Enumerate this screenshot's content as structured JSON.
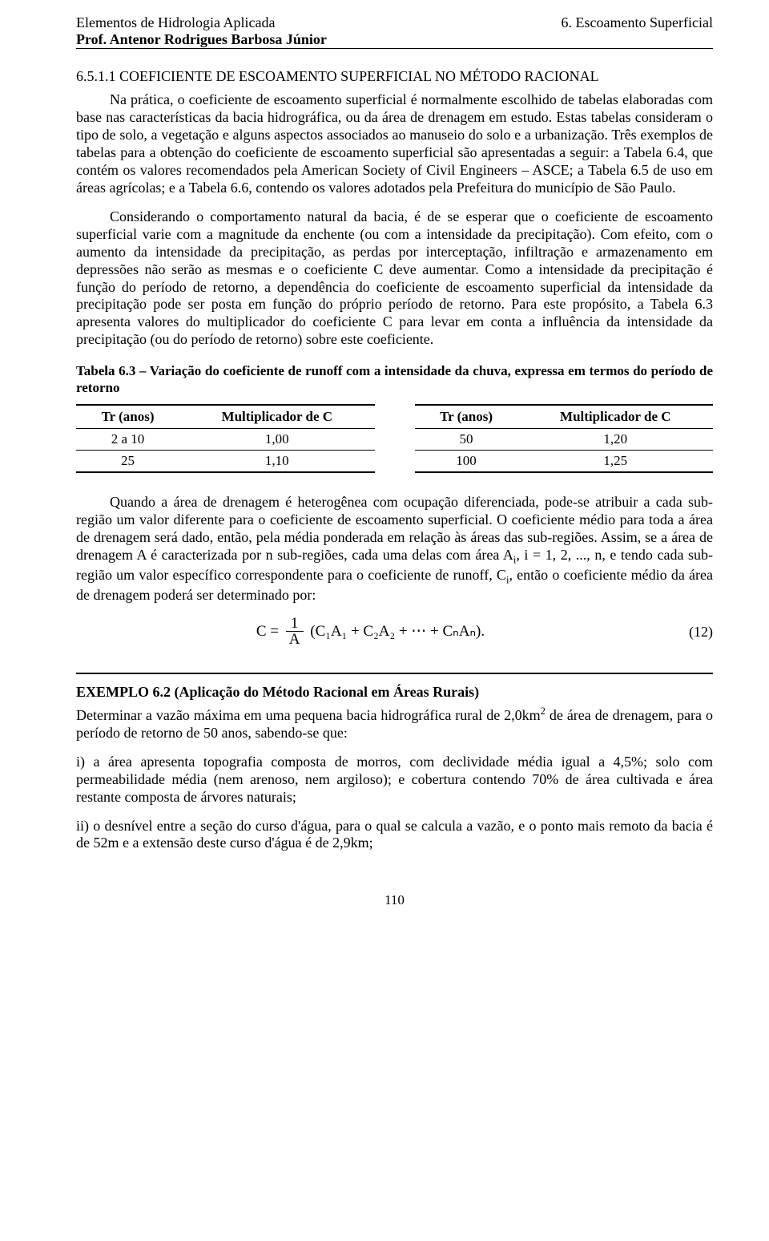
{
  "header": {
    "left_line1": "Elementos de Hidrologia Aplicada",
    "left_line2": "Prof. Antenor Rodrigues Barbosa Júnior",
    "right_line1": "6. Escoamento Superficial"
  },
  "section": {
    "title": "6.5.1.1 COEFICIENTE DE ESCOAMENTO SUPERFICIAL NO MÉTODO RACIONAL"
  },
  "paragraphs": {
    "p1": "Na prática, o coeficiente de escoamento superficial é normalmente escolhido de tabelas elaboradas com base nas características da bacia hidrográfica, ou da área de drenagem em estudo. Estas tabelas consideram o tipo de solo, a vegetação e alguns aspectos associados ao manuseio do solo e a urbanização. Três exemplos de tabelas para a obtenção do coeficiente de escoamento superficial são apresentadas a seguir: a Tabela 6.4, que contém os valores recomendados pela American Society of Civil Engineers – ASCE; a Tabela 6.5 de uso em áreas agrícolas; e a Tabela 6.6, contendo os valores adotados pela Prefeitura do município de São Paulo.",
    "p2": "Considerando o comportamento natural da bacia, é de se esperar que o coeficiente de escoamento superficial varie com a magnitude da enchente (ou com a intensidade da precipitação). Com efeito, com o aumento da intensidade da precipitação, as perdas por interceptação, infiltração e armazenamento em depressões não serão as mesmas e o coeficiente C deve aumentar. Como a intensidade da precipitação é função do período de retorno, a dependência do coeficiente de escoamento superficial da intensidade da precipitação pode ser posta em função do próprio período de retorno. Para este propósito, a Tabela 6.3 apresenta valores do multiplicador do coeficiente C para levar em conta a influência da intensidade da precipitação (ou do período de retorno) sobre este coeficiente.",
    "p3a": "Quando a área de drenagem é heterogênea com ocupação diferenciada, pode-se atribuir a cada sub-região um valor diferente para o coeficiente de escoamento superficial. O coeficiente médio para toda a área de drenagem será dado, então, pela média ponderada em relação às áreas das sub-regiões. Assim, se a área de drenagem A é caracterizada por n sub-regiões, cada uma delas com área A",
    "p3b": ", i = 1, 2, ..., n, e tendo cada sub-região um valor específico correspondente para o coeficiente de runoff, C",
    "p3c": ", então o coeficiente médio da área de drenagem poderá ser determinado por:",
    "sub_i": "i"
  },
  "table63": {
    "caption": "Tabela 6.3 – Variação do coeficiente de runoff com a intensidade da chuva, expressa em termos do período de retorno",
    "col1": "Tr (anos)",
    "col2": "Multiplicador de C",
    "left": {
      "rows": [
        [
          "2 a 10",
          "1,00"
        ],
        [
          "25",
          "1,10"
        ]
      ]
    },
    "right": {
      "rows": [
        [
          "50",
          "1,20"
        ],
        [
          "100",
          "1,25"
        ]
      ]
    }
  },
  "equation12": {
    "lhs": "C =",
    "frac_num": "1",
    "frac_den": "A",
    "body": "(C₁A₁ + C₂A₂ + ⋯ + CₙAₙ).",
    "num": "(12)"
  },
  "example": {
    "title": "EXEMPLO 6.2 (Aplicação do Método Racional em Áreas Rurais)",
    "intro_a": "Determinar a vazão máxima em uma pequena bacia hidrográfica rural de 2,0km",
    "intro_sup": "2",
    "intro_b": " de área de drenagem, para o período de retorno de 50 anos, sabendo-se que:",
    "item_i": "i) a área apresenta topografia composta de morros, com declividade média igual a 4,5%; solo com permeabilidade média (nem arenoso, nem argiloso); e cobertura contendo 70% de área cultivada e área restante composta de árvores naturais;",
    "item_ii": "ii) o desnível entre a seção do curso d'água, para o qual se calcula a vazão, e o ponto mais remoto da bacia é de 52m e a extensão deste curso d'água é de 2,9km;"
  },
  "page_number": "110"
}
